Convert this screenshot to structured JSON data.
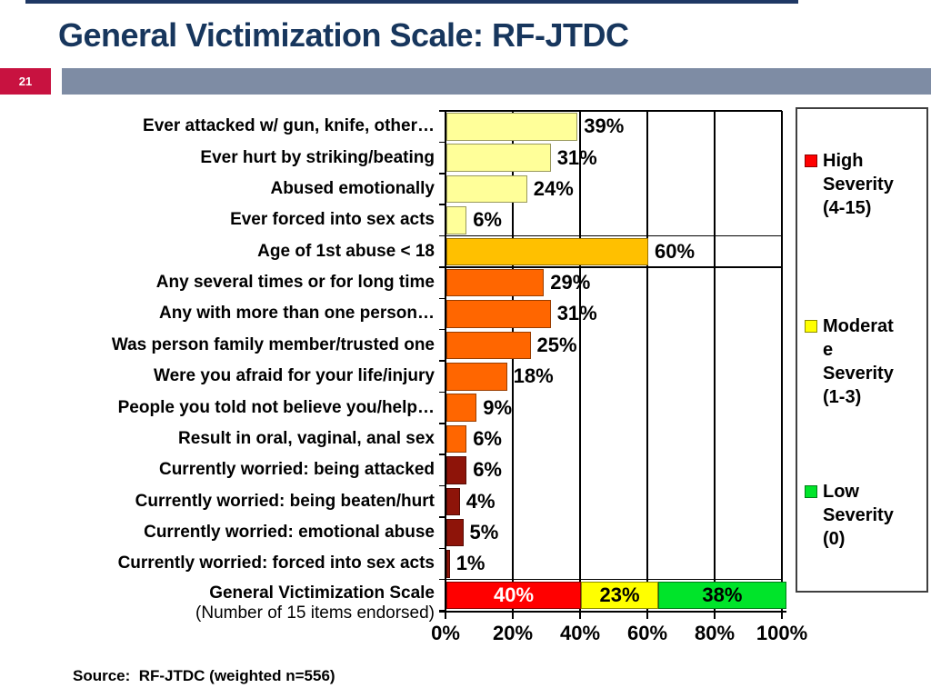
{
  "slide": {
    "number": "21",
    "title": "General Victimization Scale: RF-JTDC",
    "source": "Source:  RF-JTDC (weighted n=556)"
  },
  "colors": {
    "title_text": "#17365D",
    "top_rule": "#1F3864",
    "slide_number_bg": "#C81240",
    "header_bar": "#7E8CA4",
    "pale_yellow_fill": "#FFFF99",
    "gold_fill": "#FFC000",
    "orange_fill": "#FF6600",
    "maroon_fill": "#8E1409",
    "high_red_fill": "#FF0000",
    "moderate_yellow_fill": "#FFFF00",
    "low_green_fill": "#00E42A"
  },
  "chart_data": {
    "type": "bar",
    "orientation": "horizontal",
    "title": "",
    "xlabel": "",
    "ylabel": "",
    "xlim": [
      0,
      100
    ],
    "grid": true,
    "x_ticks": [
      "0%",
      "20%",
      "40%",
      "60%",
      "80%",
      "100%"
    ],
    "bars": [
      {
        "label": "Ever attacked w/ gun, knife, other…",
        "value": 39,
        "display": "39%",
        "color_key": "pale_yellow_fill"
      },
      {
        "label": "Ever hurt by striking/beating",
        "value": 31,
        "display": "31%",
        "color_key": "pale_yellow_fill"
      },
      {
        "label": "Abused emotionally",
        "value": 24,
        "display": "24%",
        "color_key": "pale_yellow_fill"
      },
      {
        "label": "Ever forced into sex acts",
        "value": 6,
        "display": "6%",
        "color_key": "pale_yellow_fill"
      },
      {
        "label": "Age of 1st abuse < 18",
        "value": 60,
        "display": "60%",
        "color_key": "gold_fill"
      },
      {
        "label": "Any several times or for long time",
        "value": 29,
        "display": "29%",
        "color_key": "orange_fill"
      },
      {
        "label": "Any with more than one person…",
        "value": 31,
        "display": "31%",
        "color_key": "orange_fill"
      },
      {
        "label": "Was person family member/trusted one",
        "value": 25,
        "display": "25%",
        "color_key": "orange_fill"
      },
      {
        "label": "Were you afraid for your life/injury",
        "value": 18,
        "display": "18%",
        "color_key": "orange_fill"
      },
      {
        "label": "People you told not believe you/help…",
        "value": 9,
        "display": "9%",
        "color_key": "orange_fill"
      },
      {
        "label": "Result in oral, vaginal, anal sex",
        "value": 6,
        "display": "6%",
        "color_key": "orange_fill"
      },
      {
        "label": "Currently worried: being attacked",
        "value": 6,
        "display": "6%",
        "color_key": "maroon_fill"
      },
      {
        "label": "Currently worried: being beaten/hurt",
        "value": 4,
        "display": "4%",
        "color_key": "maroon_fill"
      },
      {
        "label": "Currently worried: emotional abuse",
        "value": 5,
        "display": "5%",
        "color_key": "maroon_fill"
      },
      {
        "label": "Currently worried: forced into sex acts",
        "value": 1,
        "display": "1%",
        "color_key": "maroon_fill"
      }
    ],
    "stacked_bar": {
      "label": "General Victimization Scale",
      "label_note": "(Number of 15 items endorsed)",
      "segments": [
        {
          "name": "High Severity (4-15)",
          "value": 40,
          "display": "40%",
          "color_key": "high_red_fill",
          "text_color": "#FFFFFF"
        },
        {
          "name": "Moderate Severity (1-3)",
          "value": 23,
          "display": "23%",
          "color_key": "moderate_yellow_fill",
          "text_color": "#000000"
        },
        {
          "name": "Low Severity (0)",
          "value": 38,
          "display": "38%",
          "color_key": "low_green_fill",
          "text_color": "#000000"
        }
      ]
    },
    "legend": {
      "position": "right",
      "items": [
        {
          "label": "High Severity (4-15)",
          "lines": [
            "High",
            "Severity",
            "(4-15)"
          ],
          "color_key": "high_red_fill"
        },
        {
          "label": "Moderate Severity (1-3)",
          "lines": [
            "Moderat",
            "e",
            "Severity",
            "(1-3)"
          ],
          "color_key": "moderate_yellow_fill"
        },
        {
          "label": "Low Severity (0)",
          "lines": [
            "Low",
            "Severity",
            "(0)"
          ],
          "color_key": "low_green_fill"
        }
      ]
    }
  }
}
